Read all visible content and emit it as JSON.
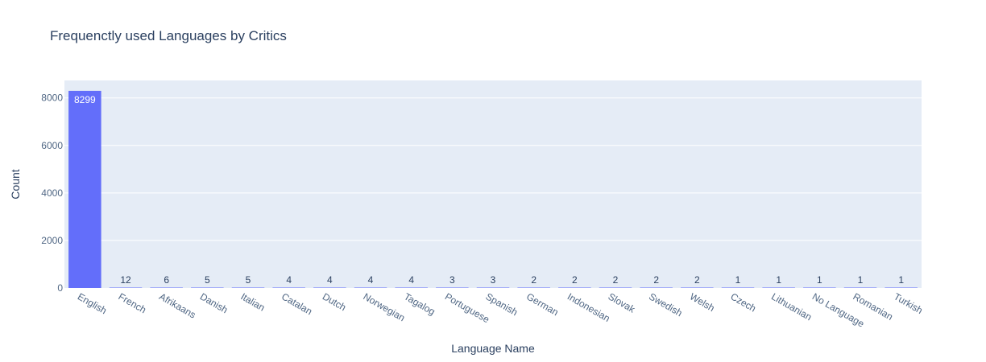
{
  "chart_data": {
    "type": "bar",
    "title": "Frequenctly used Languages by Critics",
    "xlabel": "Language Name",
    "ylabel": "Count",
    "categories": [
      "English",
      "French",
      "Afrikaans",
      "Danish",
      "Italian",
      "Catalan",
      "Dutch",
      "Norwegian",
      "Tagalog",
      "Portuguese",
      "Spanish",
      "German",
      "Indonesian",
      "Slovak",
      "Swedish",
      "Welsh",
      "Czech",
      "Lithuanian",
      "No Language",
      "Romanian",
      "Turkish"
    ],
    "values": [
      8299,
      12,
      6,
      5,
      5,
      4,
      4,
      4,
      4,
      3,
      3,
      2,
      2,
      2,
      2,
      2,
      1,
      1,
      1,
      1,
      1
    ],
    "ylim": [
      0,
      8736
    ],
    "yticks": [
      0,
      2000,
      4000,
      6000,
      8000
    ],
    "grid": true,
    "colors": {
      "bar": "#636efa",
      "plot_bg": "#e5ecf6",
      "grid": "#ffffff",
      "text": "#2a3f5f",
      "tick_text": "#506784"
    }
  }
}
